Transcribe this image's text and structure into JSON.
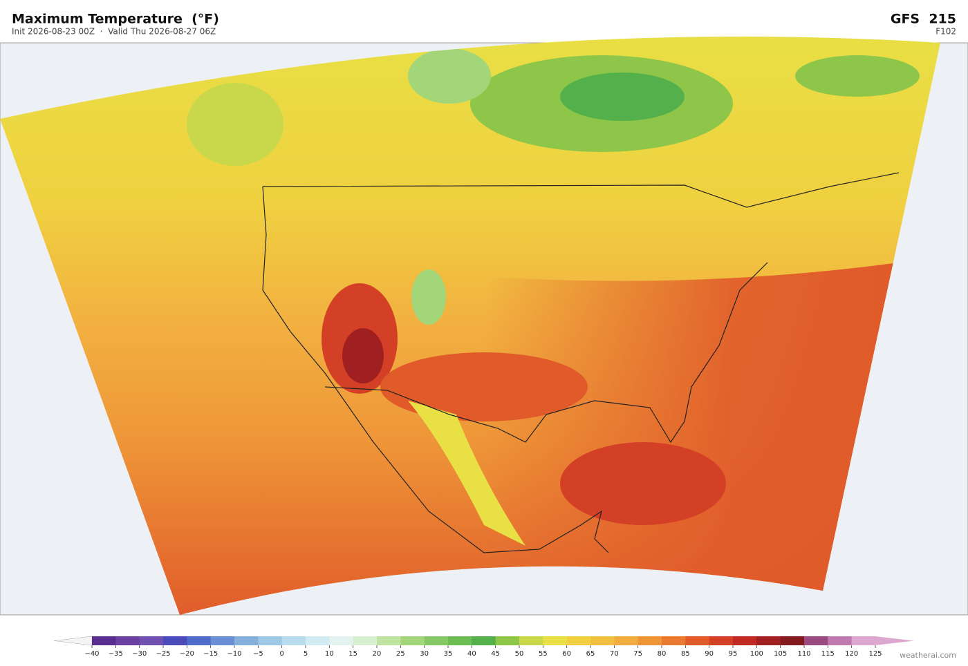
{
  "header": {
    "title": "Maximum Temperature  (°F)",
    "subtitle": "Init 2026-08-23 00Z  ·  Valid Thu 2026-08-27 06Z",
    "model": "GFS  215",
    "forecast_hour": "F102"
  },
  "colorbar": {
    "colors": [
      "#5a2d91",
      "#6a3fa0",
      "#7050b0",
      "#4a4ab8",
      "#4f6cc9",
      "#6a8fd4",
      "#86b0dc",
      "#9ec9e6",
      "#b8dcee",
      "#d0ebf2",
      "#e4f3ef",
      "#d7efd0",
      "#bfe3a0",
      "#a3d679",
      "#85c865",
      "#6dbd55",
      "#54b04a",
      "#8ec64a",
      "#c8d84a",
      "#e8e045",
      "#f0d040",
      "#f2c040",
      "#f0ac40",
      "#ee9538",
      "#e87a32",
      "#e05a2a",
      "#d44026",
      "#c02a22",
      "#a01f20",
      "#821a1e",
      "#9a4a80",
      "#c07ab0",
      "#dca8d0"
    ],
    "ticks": [
      {
        "value": -40,
        "label": "−40"
      },
      {
        "value": -35,
        "label": "−35"
      },
      {
        "value": -30,
        "label": "−30"
      },
      {
        "value": -25,
        "label": "−25"
      },
      {
        "value": -20,
        "label": "−20"
      },
      {
        "value": -15,
        "label": "−15"
      },
      {
        "value": -10,
        "label": "−10"
      },
      {
        "value": -5,
        "label": "−5"
      },
      0,
      5,
      10,
      15,
      20,
      25,
      30,
      35,
      40,
      45,
      50,
      55,
      60,
      65,
      70,
      75,
      80,
      85,
      90,
      95,
      100,
      105,
      110,
      115,
      120,
      125
    ]
  },
  "footer": {
    "credit": "weatherai.com"
  }
}
